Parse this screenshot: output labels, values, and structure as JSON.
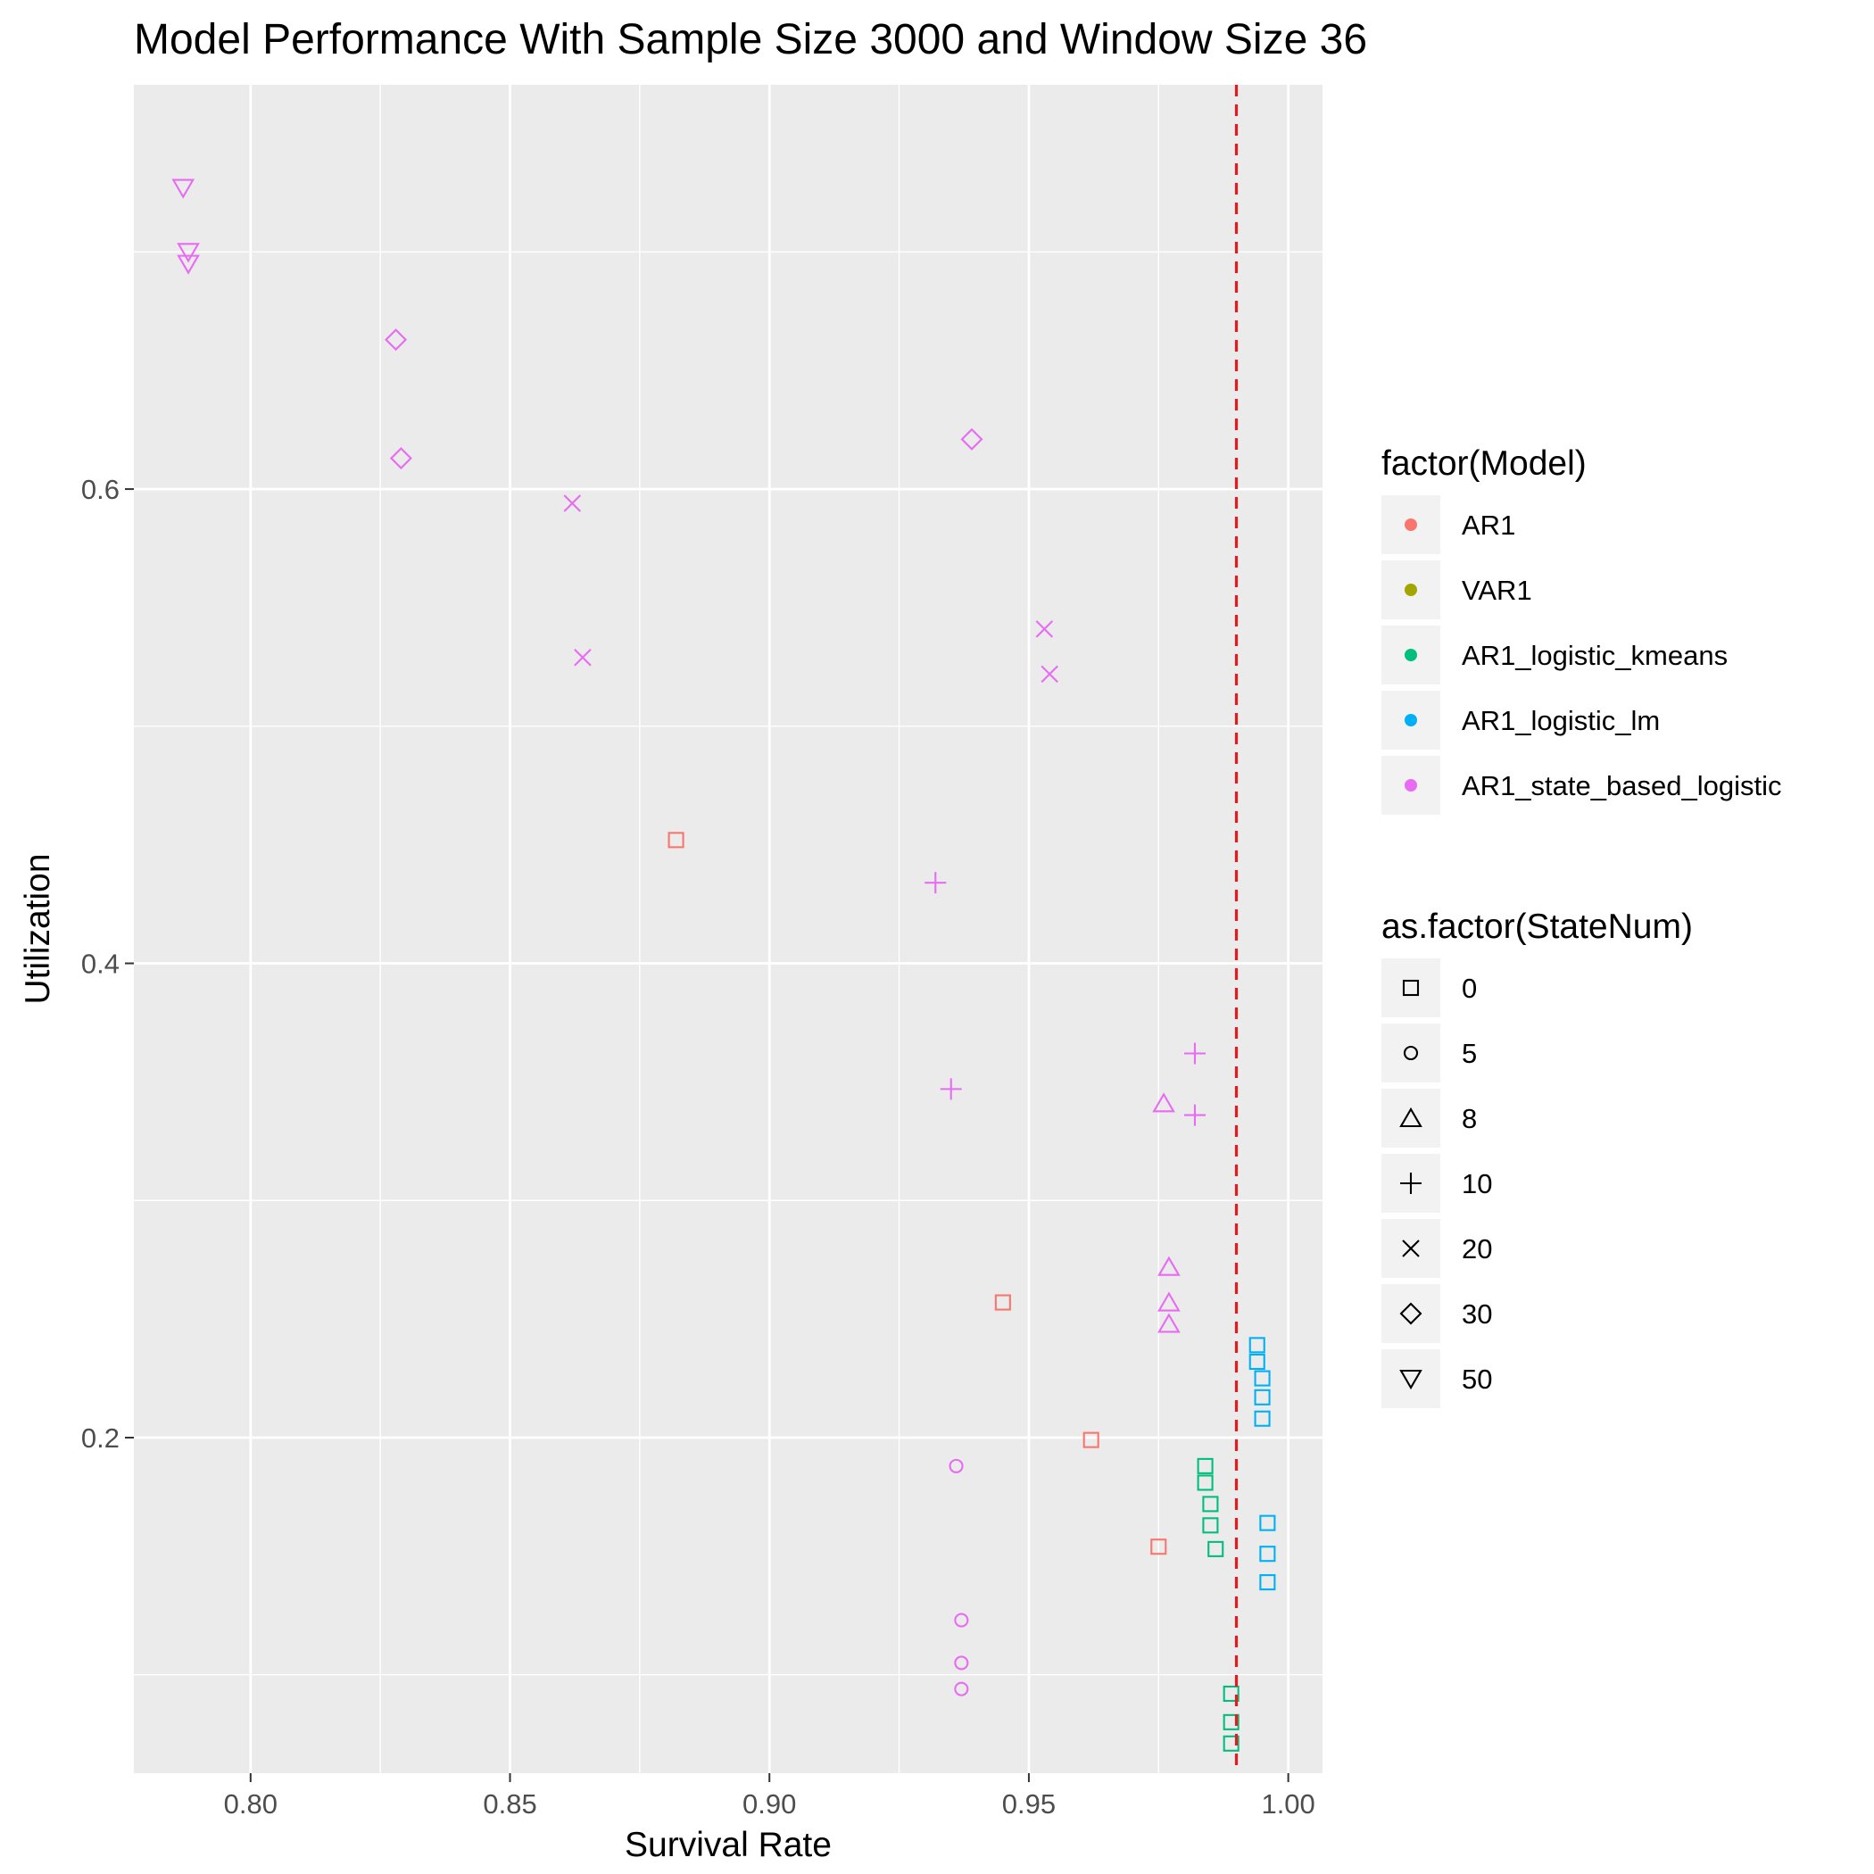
{
  "chart_data": {
    "type": "scatter",
    "title": "Model Performance With Sample Size 3000 and Window Size 36",
    "xlabel": "Survival Rate",
    "ylabel": "Utilization",
    "xlim": [
      0.7775,
      1.0066
    ],
    "ylim": [
      0.0585,
      0.7705
    ],
    "x_ticks": [
      0.8,
      0.85,
      0.9,
      0.95,
      1.0
    ],
    "x_tick_labels": [
      "0.80",
      "0.85",
      "0.90",
      "0.95",
      "1.00"
    ],
    "y_ticks": [
      0.2,
      0.4,
      0.6
    ],
    "y_tick_labels": [
      "0.2",
      "0.4",
      "0.6"
    ],
    "grid": true,
    "reference_line": {
      "axis": "x",
      "value": 0.99,
      "color": "#E41A1C",
      "style": "dashed"
    },
    "colors": {
      "AR1": "#F8766D",
      "VAR1": "#A3A500",
      "AR1_logistic_kmeans": "#00BF7D",
      "AR1_logistic_lm": "#00B0F6",
      "AR1_state_based_logistic": "#E76BF3"
    },
    "legend": {
      "placement": "right",
      "model": {
        "title": "factor(Model)",
        "entries": [
          "AR1",
          "VAR1",
          "AR1_logistic_kmeans",
          "AR1_logistic_lm",
          "AR1_state_based_logistic"
        ]
      },
      "statenum": {
        "title": "as.factor(StateNum)",
        "entries": [
          {
            "label": "0",
            "shape": "square"
          },
          {
            "label": "5",
            "shape": "circle"
          },
          {
            "label": "8",
            "shape": "triangle"
          },
          {
            "label": "10",
            "shape": "plus"
          },
          {
            "label": "20",
            "shape": "cross"
          },
          {
            "label": "30",
            "shape": "diamond"
          },
          {
            "label": "50",
            "shape": "triangle-down"
          }
        ]
      }
    },
    "series": [
      {
        "model": "AR1",
        "statenum": "0",
        "points": [
          [
            0.882,
            0.452
          ],
          [
            0.945,
            0.257
          ],
          [
            0.962,
            0.199
          ],
          [
            0.975,
            0.154
          ]
        ]
      },
      {
        "model": "AR1_logistic_kmeans",
        "statenum": "0",
        "points": [
          [
            0.984,
            0.188
          ],
          [
            0.984,
            0.181
          ],
          [
            0.985,
            0.172
          ],
          [
            0.985,
            0.163
          ],
          [
            0.986,
            0.153
          ],
          [
            0.989,
            0.092
          ],
          [
            0.989,
            0.08
          ],
          [
            0.989,
            0.071
          ]
        ]
      },
      {
        "model": "AR1_logistic_lm",
        "statenum": "0",
        "points": [
          [
            0.994,
            0.239
          ],
          [
            0.994,
            0.232
          ],
          [
            0.995,
            0.225
          ],
          [
            0.995,
            0.217
          ],
          [
            0.995,
            0.208
          ],
          [
            0.996,
            0.164
          ],
          [
            0.996,
            0.151
          ],
          [
            0.996,
            0.139
          ]
        ]
      },
      {
        "model": "AR1_state_based_logistic",
        "statenum": "5",
        "points": [
          [
            0.936,
            0.188
          ],
          [
            0.937,
            0.123
          ],
          [
            0.937,
            0.105
          ],
          [
            0.937,
            0.094
          ]
        ]
      },
      {
        "model": "AR1_state_based_logistic",
        "statenum": "8",
        "points": [
          [
            0.976,
            0.341
          ],
          [
            0.977,
            0.272
          ],
          [
            0.977,
            0.257
          ],
          [
            0.977,
            0.248
          ]
        ]
      },
      {
        "model": "AR1_state_based_logistic",
        "statenum": "10",
        "points": [
          [
            0.932,
            0.434
          ],
          [
            0.935,
            0.347
          ],
          [
            0.982,
            0.362
          ],
          [
            0.982,
            0.336
          ]
        ]
      },
      {
        "model": "AR1_state_based_logistic",
        "statenum": "20",
        "points": [
          [
            0.862,
            0.594
          ],
          [
            0.864,
            0.529
          ],
          [
            0.953,
            0.541
          ],
          [
            0.954,
            0.522
          ]
        ]
      },
      {
        "model": "AR1_state_based_logistic",
        "statenum": "30",
        "points": [
          [
            0.828,
            0.663
          ],
          [
            0.829,
            0.613
          ],
          [
            0.939,
            0.621
          ]
        ]
      },
      {
        "model": "AR1_state_based_logistic",
        "statenum": "50",
        "points": [
          [
            0.787,
            0.727
          ],
          [
            0.788,
            0.7
          ],
          [
            0.788,
            0.695
          ]
        ]
      }
    ]
  }
}
